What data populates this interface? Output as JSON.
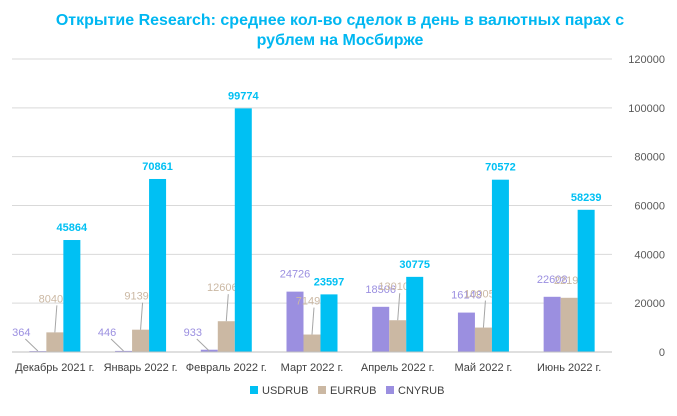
{
  "chart_data": {
    "type": "bar",
    "title": "Открытие Research: среднее кол-во сделок в день в валютных парах с рублем на Мосбирже",
    "categories": [
      "Декабрь 2021 г.",
      "Январь 2022 г.",
      "Февраль 2022 г.",
      "Март 2022 г.",
      "Апрель 2022 г.",
      "Май 2022 г.",
      "Июнь 2022 г."
    ],
    "series": [
      {
        "name": "CNYRUB",
        "values": [
          364,
          446,
          933,
          24726,
          18506,
          16143,
          22608
        ]
      },
      {
        "name": "EURRUB",
        "values": [
          8040,
          9139,
          12606,
          7149,
          13010,
          10005,
          22199
        ]
      },
      {
        "name": "USDRUB",
        "values": [
          45864,
          70861,
          99774,
          23597,
          30775,
          70572,
          58239
        ]
      }
    ],
    "ylim": [
      0,
      120000
    ],
    "yticks": [
      "0",
      "20000",
      "40000",
      "60000",
      "80000",
      "100000",
      "120000"
    ],
    "yaxis_side": "right",
    "grid": true,
    "legend_position": "bottom",
    "legend_order": [
      "USDRUB",
      "EURRUB",
      "CNYRUB"
    ]
  },
  "colors": {
    "title": "#00B7F1",
    "CNYRUB": "#9B8FE0",
    "EURRUB": "#CBB8A3",
    "USDRUB": "#00C0F3",
    "gridline": "#d9d9d9",
    "axis_text": "#595959"
  }
}
